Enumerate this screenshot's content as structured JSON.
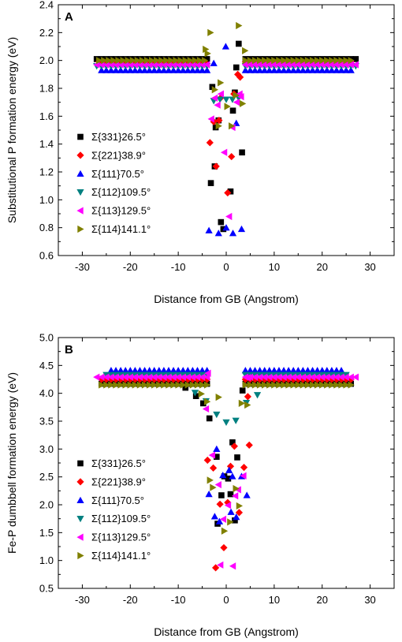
{
  "chart_data": [
    {
      "type": "scatter",
      "panel_label": "A",
      "xlabel": "Distance from GB (Angstrom)",
      "ylabel": "Substitutional P formation energy (eV)",
      "xlim": [
        -35,
        35
      ],
      "ylim": [
        0.6,
        2.4
      ],
      "xticks": [
        -30,
        -20,
        -10,
        0,
        10,
        20,
        30
      ],
      "xtick_labels": [
        "-30",
        "-20",
        "-10",
        "0",
        "10",
        "20",
        "30"
      ],
      "yticks": [
        0.6,
        0.8,
        1.0,
        1.2,
        1.4,
        1.6,
        1.8,
        2.0,
        2.2,
        2.4
      ],
      "ytick_labels": [
        "0.6",
        "0.8",
        "1.0",
        "1.2",
        "1.4",
        "1.6",
        "1.8",
        "2.0",
        "2.2",
        "2.4"
      ],
      "legend_position": "left",
      "series": [
        {
          "name": "Σ{331}26.5°",
          "color": "#000000",
          "marker": "square",
          "plateau": {
            "left": -27,
            "right": 27,
            "inner": 4,
            "value": 2.01,
            "step": 1
          },
          "x": [
            -3.2,
            -2.4,
            -2.9,
            -1.6,
            -1.1,
            -0.6,
            0.9,
            1.4,
            2.1,
            2.6,
            3.3,
            -2.2,
            1.8
          ],
          "y": [
            1.12,
            1.24,
            1.81,
            1.57,
            0.84,
            0.79,
            1.06,
            1.64,
            1.95,
            2.12,
            1.34,
            1.52,
            1.77
          ]
        },
        {
          "name": "Σ{221}38.9°",
          "color": "#ff0000",
          "marker": "diamond",
          "plateau": {
            "left": -26.5,
            "right": 26.5,
            "inner": 4,
            "value": 1.99,
            "step": 1
          },
          "x": [
            -3.4,
            -2.6,
            -2.1,
            -1.5,
            0.3,
            1.1,
            1.6,
            2.4,
            -1.2,
            2.9
          ],
          "y": [
            1.41,
            1.56,
            1.24,
            1.57,
            1.05,
            1.31,
            1.76,
            1.9,
            1.73,
            1.88
          ]
        },
        {
          "name": "Σ{111}70.5°",
          "color": "#0000ff",
          "marker": "triangle-up",
          "plateau": {
            "left": -26,
            "right": 26,
            "inner": 4,
            "value": 1.93,
            "step": 1
          },
          "x": [
            -3.6,
            -1.6,
            0.0,
            1.4,
            3.2,
            -0.1,
            2.1,
            -2.6
          ],
          "y": [
            0.78,
            0.76,
            0.8,
            0.76,
            0.79,
            2.1,
            1.55,
            1.98
          ]
        },
        {
          "name": "Σ{112}109.5°",
          "color": "#008080",
          "marker": "triangle-down",
          "plateau": {
            "left": -27,
            "right": 27,
            "inner": 4,
            "value": 1.96,
            "step": 1
          },
          "x": [
            -2.6,
            -1.3,
            0.0,
            1.3,
            2.6
          ],
          "y": [
            1.71,
            1.72,
            1.72,
            1.72,
            1.73
          ]
        },
        {
          "name": "Σ{113}129.5°",
          "color": "#ff00ff",
          "marker": "triangle-left",
          "plateau": {
            "left": -27,
            "right": 27,
            "inner": 4,
            "value": 1.97,
            "step": 1
          },
          "x": [
            -3.1,
            -2.4,
            -1.8,
            -0.4,
            0.6,
            1.3,
            2.2,
            3.1,
            -1.1,
            2.8
          ],
          "y": [
            1.58,
            1.73,
            1.68,
            1.34,
            0.88,
            1.52,
            1.7,
            1.74,
            1.76,
            1.76
          ]
        },
        {
          "name": "Σ{114}141.1°",
          "color": "#808000",
          "marker": "triangle-right",
          "plateau": {
            "left": -26.5,
            "right": 26.5,
            "inner": 4,
            "value": 2.0,
            "step": 1
          },
          "x": [
            -4.3,
            -3.3,
            -2.4,
            -1.6,
            -1.2,
            0.2,
            1.1,
            2.0,
            2.6,
            3.4,
            -3.9,
            3.9
          ],
          "y": [
            2.08,
            2.2,
            1.79,
            1.53,
            1.84,
            1.67,
            1.53,
            1.75,
            2.25,
            1.69,
            2.05,
            2.07
          ]
        }
      ]
    },
    {
      "type": "scatter",
      "panel_label": "B",
      "xlabel": "Distance from GB (Angstrom)",
      "ylabel": "Fe-P dumbbell formation energy (eV)",
      "xlim": [
        -35,
        35
      ],
      "ylim": [
        0.5,
        5.0
      ],
      "xticks": [
        -30,
        -20,
        -10,
        0,
        10,
        20,
        30
      ],
      "xtick_labels": [
        "-30",
        "-20",
        "-10",
        "0",
        "10",
        "20",
        "30"
      ],
      "yticks": [
        0.5,
        1.0,
        1.5,
        2.0,
        2.5,
        3.0,
        3.5,
        4.0,
        4.5,
        5.0
      ],
      "ytick_labels": [
        "0.5",
        "1.0",
        "1.5",
        "2.0",
        "2.5",
        "3.0",
        "3.5",
        "4.0",
        "4.5",
        "5.0"
      ],
      "legend_position": "left",
      "series": [
        {
          "name": "Σ{331}26.5°",
          "color": "#000000",
          "marker": "square",
          "plateau": {
            "left": -26,
            "right": 26,
            "inner": 4,
            "value": 4.17,
            "step": 1
          },
          "x": [
            -8.5,
            -6.3,
            -4.8,
            -3.5,
            -2.0,
            -1.0,
            0.4,
            1.3,
            2.3,
            1.8,
            -1.8,
            0.9,
            -0.4,
            3.4,
            4.6
          ],
          "y": [
            4.1,
            3.95,
            3.82,
            3.55,
            2.86,
            2.17,
            2.47,
            3.12,
            2.85,
            1.72,
            1.66,
            2.19,
            2.51,
            4.05,
            4.21
          ]
        },
        {
          "name": "Σ{221}38.9°",
          "color": "#ff0000",
          "marker": "diamond",
          "plateau": {
            "left": -26,
            "right": 26,
            "inner": 4,
            "value": 4.25,
            "step": 1
          },
          "x": [
            -3.9,
            -2.7,
            -1.3,
            0.9,
            1.7,
            2.7,
            3.7,
            4.5,
            -0.5,
            0.3,
            -2.2,
            4.8
          ],
          "y": [
            2.8,
            2.66,
            2.01,
            2.69,
            3.05,
            1.86,
            2.67,
            3.94,
            1.23,
            2.04,
            0.87,
            3.07
          ]
        },
        {
          "name": "Σ{111}70.5°",
          "color": "#0000ff",
          "marker": "triangle-up",
          "plateau": {
            "left": -24,
            "right": 24,
            "inner": 4,
            "value": 4.41,
            "step": 1
          },
          "x": [
            -3.6,
            -2.4,
            -1.4,
            -0.7,
            0.6,
            1.3,
            2.1,
            3.2,
            4.3,
            -2.0,
            1.0
          ],
          "y": [
            2.19,
            1.79,
            1.7,
            2.53,
            2.62,
            2.51,
            1.78,
            2.51,
            2.17,
            3.0,
            1.87
          ]
        },
        {
          "name": "Σ{112}109.5°",
          "color": "#008080",
          "marker": "triangle-down",
          "plateau": {
            "left": -25,
            "right": 25,
            "inner": 4,
            "value": 4.33,
            "step": 1
          },
          "x": [
            -6.5,
            -4.2,
            -2.0,
            0.0,
            2.0,
            4.2,
            6.5
          ],
          "y": [
            4.01,
            3.86,
            3.62,
            3.48,
            3.51,
            3.83,
            3.97
          ]
        },
        {
          "name": "Σ{113}129.5°",
          "color": "#ff00ff",
          "marker": "triangle-left",
          "plateau": {
            "left": -27,
            "right": 27,
            "inner": 4,
            "value": 4.29,
            "step": 1
          },
          "x": [
            -4.2,
            -2.9,
            -1.6,
            -0.6,
            0.4,
            1.4,
            2.5,
            3.6,
            4.5,
            -1.2,
            1.9,
            -3.8
          ],
          "y": [
            3.72,
            2.89,
            2.36,
            1.74,
            1.99,
            0.9,
            2.27,
            2.52,
            4.28,
            0.92,
            2.16,
            4.36
          ]
        },
        {
          "name": "Σ{114}141.1°",
          "color": "#808000",
          "marker": "triangle-right",
          "plateau": {
            "left": -26,
            "right": 26,
            "inner": 4,
            "value": 4.15,
            "step": 1
          },
          "x": [
            -5.2,
            -4.0,
            -2.8,
            -1.6,
            -0.4,
            0.8,
            2.0,
            3.2,
            4.4,
            -3.4,
            2.7
          ],
          "y": [
            3.99,
            3.85,
            2.31,
            3.93,
            1.53,
            1.69,
            2.29,
            3.82,
            3.79,
            2.44,
            1.98
          ]
        }
      ]
    }
  ]
}
